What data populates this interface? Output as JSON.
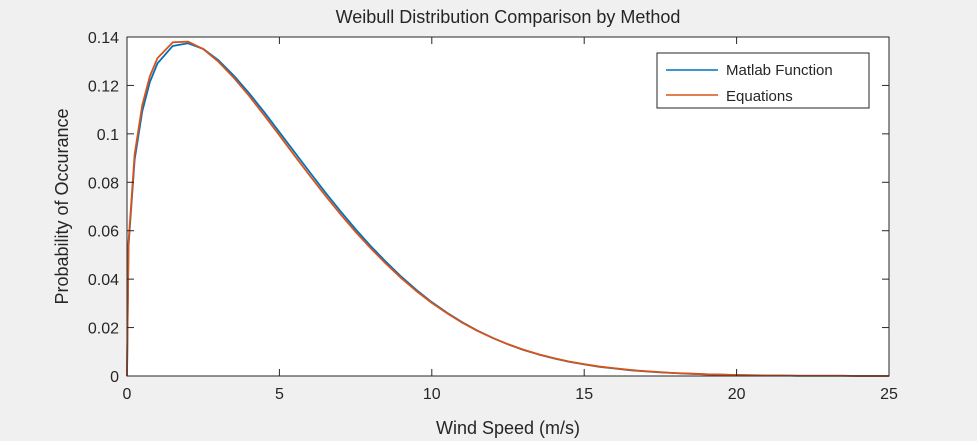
{
  "chart_data": {
    "type": "line",
    "title": "Weibull Distribution Comparison by Method",
    "xlabel": "Wind Speed (m/s)",
    "ylabel": "Probability of Occurance",
    "xlim": [
      0,
      25
    ],
    "ylim": [
      0,
      0.14
    ],
    "xticks": [
      0,
      5,
      10,
      15,
      20,
      25
    ],
    "xtick_labels": [
      "0",
      "5",
      "10",
      "15",
      "20",
      "25"
    ],
    "yticks": [
      0,
      0.02,
      0.04,
      0.06,
      0.08,
      0.1,
      0.12,
      0.14
    ],
    "ytick_labels": [
      "0",
      "0.02",
      "0.04",
      "0.06",
      "0.08",
      "0.1",
      "0.12",
      "0.14"
    ],
    "grid": false,
    "legend_position": "top-right",
    "series": [
      {
        "name": "Matlab Function",
        "color": "#0072bd",
        "x": [
          0,
          0.05,
          0.25,
          0.5,
          0.75,
          1.0,
          1.5,
          2.0,
          2.5,
          3.0,
          3.5,
          4.0,
          4.5,
          5.0,
          5.5,
          6.0,
          6.5,
          7.0,
          7.5,
          8.0,
          8.5,
          9.0,
          9.5,
          10.0,
          10.5,
          11.0,
          11.5,
          12.0,
          12.5,
          13.0,
          13.5,
          14.0,
          14.5,
          15.0,
          15.5,
          16.0,
          16.5,
          17.0,
          17.5,
          18.0,
          18.5,
          19.0,
          19.5,
          20.0,
          20.5,
          21.0,
          21.5,
          22.0,
          22.5,
          23.0,
          23.5,
          24.0,
          24.5,
          25.0
        ],
        "y": [
          0,
          0.0538,
          0.0893,
          0.1093,
          0.1214,
          0.1291,
          0.1363,
          0.1374,
          0.1351,
          0.1304,
          0.1241,
          0.1169,
          0.109,
          0.1007,
          0.0924,
          0.0841,
          0.0759,
          0.0681,
          0.0606,
          0.0536,
          0.0471,
          0.041,
          0.0355,
          0.0305,
          0.0261,
          0.0222,
          0.0187,
          0.0157,
          0.0131,
          0.0108,
          0.0089,
          0.0073,
          0.0059,
          0.0048,
          0.0038,
          0.0031,
          0.0024,
          0.0019,
          0.0015,
          0.0012,
          0.0009,
          0.0007,
          0.0005,
          0.0004,
          0.0003,
          0.0002,
          0.0002,
          0.0001,
          0.0001,
          0.0001,
          0.0001,
          0,
          0,
          0
        ]
      },
      {
        "name": "Equations",
        "color": "#d95319",
        "x": [
          0,
          0.05,
          0.25,
          0.5,
          0.75,
          1.0,
          1.5,
          2.0,
          2.5,
          3.0,
          3.5,
          4.0,
          4.5,
          5.0,
          5.5,
          6.0,
          6.5,
          7.0,
          7.5,
          8.0,
          8.5,
          9.0,
          9.5,
          10.0,
          10.5,
          11.0,
          11.5,
          12.0,
          12.5,
          13.0,
          13.5,
          14.0,
          14.5,
          15.0,
          15.5,
          16.0,
          16.5,
          17.0,
          17.5,
          18.0,
          18.5,
          19.0,
          19.5,
          20.0,
          20.5,
          21.0,
          21.5,
          22.0,
          22.5,
          23.0,
          23.5,
          24.0,
          24.5,
          25.0
        ],
        "y": [
          0,
          0.0551,
          0.0915,
          0.1118,
          0.1238,
          0.1313,
          0.1378,
          0.1381,
          0.135,
          0.1298,
          0.1232,
          0.1158,
          0.1077,
          0.0994,
          0.091,
          0.0827,
          0.0746,
          0.0669,
          0.0595,
          0.0527,
          0.0463,
          0.0404,
          0.035,
          0.0302,
          0.0259,
          0.022,
          0.0186,
          0.0157,
          0.0131,
          0.0109,
          0.009,
          0.0074,
          0.006,
          0.0049,
          0.0039,
          0.0032,
          0.0025,
          0.002,
          0.0016,
          0.0012,
          0.001,
          0.0007,
          0.0006,
          0.0004,
          0.0003,
          0.0002,
          0.0002,
          0.0001,
          0.0001,
          0.0001,
          0.0001,
          0,
          0,
          0
        ]
      }
    ]
  }
}
